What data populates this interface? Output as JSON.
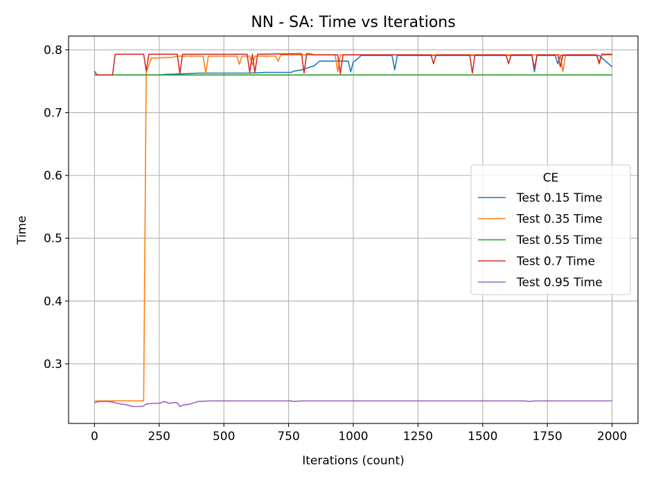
{
  "chart_data": {
    "type": "line",
    "title": "NN - SA: Time vs Iterations",
    "xlabel": "Iterations (count)",
    "ylabel": "Time",
    "xlim": [
      -100,
      2100
    ],
    "ylim": [
      0.205,
      0.822
    ],
    "xticks": [
      0,
      250,
      500,
      750,
      1000,
      1250,
      1500,
      1750,
      2000
    ],
    "xtick_labels": [
      "0",
      "250",
      "500",
      "750",
      "1000",
      "1250",
      "1500",
      "1750",
      "2000"
    ],
    "yticks": [
      0.3,
      0.4,
      0.5,
      0.6,
      0.7,
      0.8
    ],
    "ytick_labels": [
      "0.3",
      "0.4",
      "0.5",
      "0.6",
      "0.7",
      "0.8"
    ],
    "grid": true,
    "legend": {
      "title": "CE",
      "placement": "center-right"
    },
    "series": [
      {
        "name": "Test 0.15 Time",
        "color": "#1f77b4",
        "x": [
          0,
          10,
          200,
          250,
          275,
          350,
          400,
          500,
          600,
          660,
          700,
          750,
          760,
          770,
          800,
          850,
          870,
          930,
          940,
          960,
          980,
          990,
          1000,
          1010,
          1020,
          1030,
          1100,
          1150,
          1160,
          1170,
          1200,
          1250,
          1400,
          1500,
          1600,
          1690,
          1700,
          1710,
          1750,
          1780,
          1790,
          1800,
          1820,
          1830,
          1900,
          1950,
          2000
        ],
        "y": [
          0.76,
          0.76,
          0.76,
          0.76,
          0.761,
          0.762,
          0.763,
          0.763,
          0.763,
          0.764,
          0.764,
          0.764,
          0.764,
          0.766,
          0.768,
          0.775,
          0.782,
          0.782,
          0.782,
          0.782,
          0.782,
          0.765,
          0.781,
          0.783,
          0.787,
          0.791,
          0.791,
          0.791,
          0.768,
          0.791,
          0.791,
          0.791,
          0.791,
          0.791,
          0.791,
          0.791,
          0.765,
          0.791,
          0.791,
          0.791,
          0.778,
          0.791,
          0.791,
          0.791,
          0.791,
          0.791,
          0.773
        ]
      },
      {
        "name": "Test 0.35 Time",
        "color": "#ff7f0e",
        "x": [
          0,
          190,
          200,
          210,
          220,
          240,
          300,
          320,
          330,
          420,
          430,
          440,
          450,
          550,
          560,
          570,
          580,
          600,
          610,
          620,
          630,
          700,
          710,
          720,
          750,
          800,
          900,
          930,
          940,
          950,
          1000,
          1010,
          1100,
          1200,
          1300,
          1400,
          1500,
          1600,
          1700,
          1800,
          1810,
          1820,
          1900,
          1940,
          1950,
          1960,
          2000
        ],
        "y": [
          0.241,
          0.241,
          0.765,
          0.775,
          0.787,
          0.787,
          0.788,
          0.79,
          0.79,
          0.79,
          0.763,
          0.79,
          0.79,
          0.79,
          0.777,
          0.79,
          0.79,
          0.79,
          0.776,
          0.79,
          0.79,
          0.79,
          0.782,
          0.792,
          0.792,
          0.792,
          0.792,
          0.792,
          0.765,
          0.792,
          0.792,
          0.792,
          0.792,
          0.792,
          0.792,
          0.792,
          0.792,
          0.792,
          0.792,
          0.792,
          0.765,
          0.792,
          0.792,
          0.792,
          0.781,
          0.792,
          0.792
        ]
      },
      {
        "name": "Test 0.55 Time",
        "color": "#2ca02c",
        "x": [
          0,
          2000
        ],
        "y": [
          0.76,
          0.76
        ]
      },
      {
        "name": "Test 0.7 Time",
        "color": "#d62728",
        "x": [
          0,
          10,
          20,
          70,
          80,
          90,
          190,
          200,
          210,
          220,
          320,
          330,
          340,
          590,
          600,
          610,
          620,
          630,
          640,
          800,
          810,
          820,
          830,
          850,
          940,
          950,
          960,
          1000,
          1300,
          1310,
          1320,
          1450,
          1460,
          1470,
          1590,
          1600,
          1610,
          1690,
          1700,
          1710,
          1790,
          1800,
          1810,
          1940,
          1950,
          1960,
          2000
        ],
        "y": [
          0.766,
          0.76,
          0.76,
          0.76,
          0.793,
          0.793,
          0.793,
          0.766,
          0.793,
          0.793,
          0.793,
          0.762,
          0.793,
          0.793,
          0.764,
          0.793,
          0.764,
          0.793,
          0.793,
          0.794,
          0.763,
          0.794,
          0.794,
          0.792,
          0.792,
          0.762,
          0.792,
          0.792,
          0.792,
          0.778,
          0.792,
          0.792,
          0.763,
          0.792,
          0.792,
          0.778,
          0.792,
          0.792,
          0.77,
          0.792,
          0.792,
          0.773,
          0.792,
          0.792,
          0.778,
          0.793,
          0.793
        ]
      },
      {
        "name": "Test 0.95 Time",
        "color": "#9467bd",
        "x": [
          0,
          20,
          50,
          70,
          100,
          120,
          150,
          180,
          190,
          200,
          230,
          250,
          270,
          290,
          300,
          320,
          330,
          340,
          370,
          400,
          450,
          500,
          600,
          700,
          760,
          770,
          800,
          1000,
          1250,
          1500,
          1660,
          1680,
          1700,
          2000
        ],
        "y": [
          0.238,
          0.24,
          0.24,
          0.239,
          0.236,
          0.235,
          0.232,
          0.232,
          0.233,
          0.236,
          0.237,
          0.237,
          0.24,
          0.237,
          0.238,
          0.238,
          0.232,
          0.234,
          0.236,
          0.24,
          0.241,
          0.241,
          0.241,
          0.241,
          0.241,
          0.24,
          0.241,
          0.241,
          0.241,
          0.241,
          0.241,
          0.24,
          0.241,
          0.241
        ]
      }
    ]
  }
}
